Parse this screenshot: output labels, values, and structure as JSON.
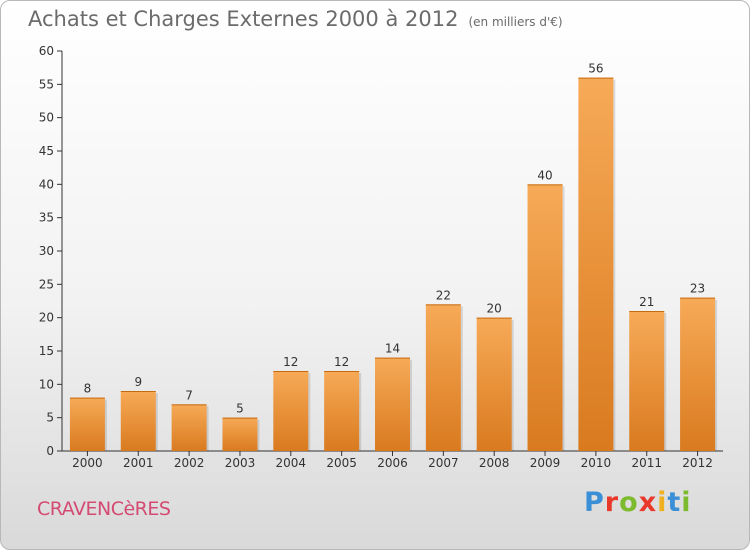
{
  "chart_data": {
    "type": "bar",
    "title": "Achats et Charges Externes 2000 à 2012",
    "subtitle": "(en milliers d'€)",
    "categories": [
      "2000",
      "2001",
      "2002",
      "2003",
      "2004",
      "2005",
      "2006",
      "2007",
      "2008",
      "2009",
      "2010",
      "2011",
      "2012"
    ],
    "values": [
      8,
      9,
      7,
      5,
      12,
      12,
      14,
      22,
      20,
      40,
      56,
      21,
      23
    ],
    "ylim": [
      0,
      60
    ],
    "yticks": [
      0,
      5,
      10,
      15,
      20,
      25,
      30,
      35,
      40,
      45,
      50,
      55,
      60
    ],
    "grid": false,
    "legend": "none",
    "bar_color": "#f29a3c",
    "bar_color_light": "#f7aa57",
    "bar_color_dark": "#d97a1f"
  },
  "footer": {
    "place_name": "CRAVENCèRES",
    "logo_letters": [
      "P",
      "r",
      "o",
      "x",
      "i",
      "t",
      "i"
    ],
    "logo_colors": [
      "#3a8fd6",
      "#e8392b",
      "#7dbb2e",
      "#e8392b",
      "#f0b020",
      "#3a8fd6",
      "#7dbb2e"
    ]
  }
}
